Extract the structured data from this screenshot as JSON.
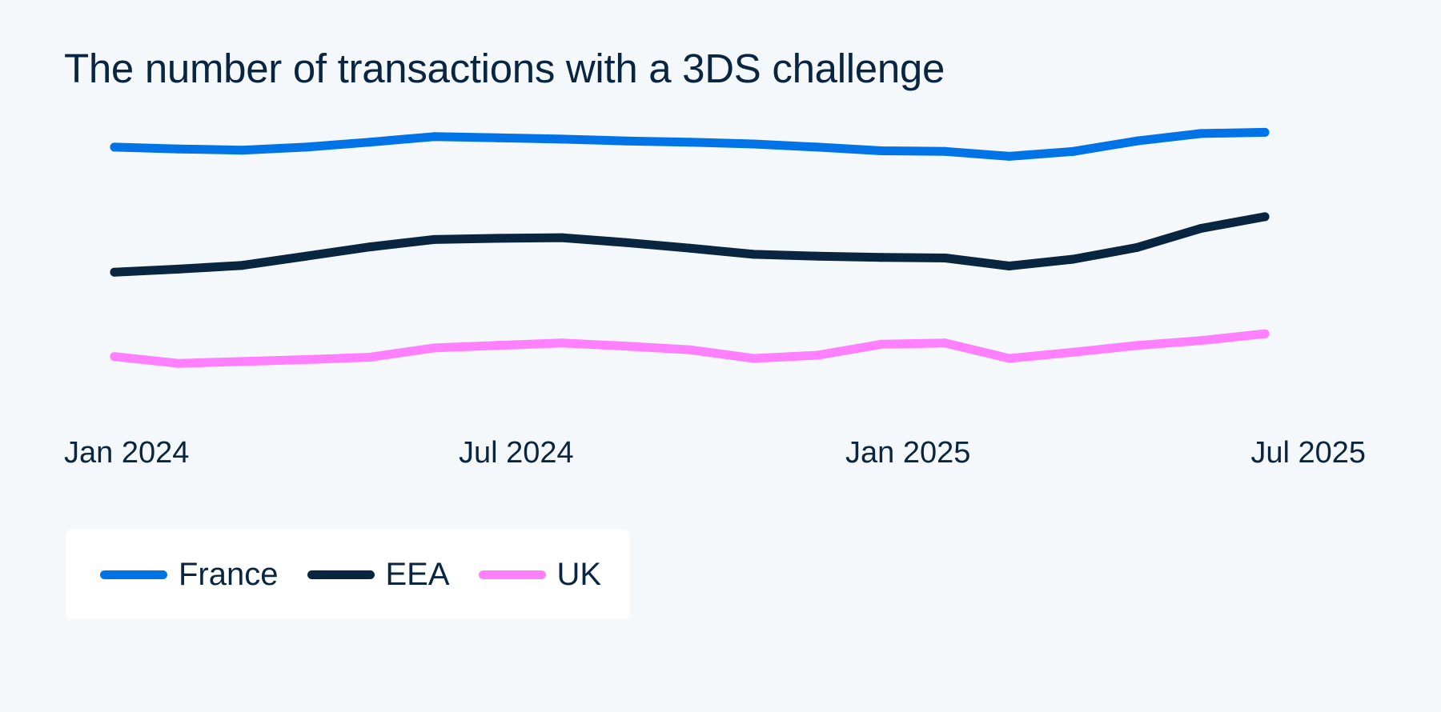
{
  "chart_data": {
    "type": "line",
    "title": "The number of transactions with a 3DS challenge",
    "xlabel": "",
    "ylabel": "",
    "x": [
      "2024-01",
      "2024-02",
      "2024-03",
      "2024-04",
      "2024-05",
      "2024-06",
      "2024-07",
      "2024-08",
      "2024-09",
      "2024-10",
      "2024-11",
      "2024-12",
      "2025-01",
      "2025-02",
      "2025-03",
      "2025-04",
      "2025-05",
      "2025-06",
      "2025-07"
    ],
    "x_ticks": [
      "Jan 2024",
      "Jul 2024",
      "Jan 2025",
      "Jul 2025"
    ],
    "y_axis_visible": false,
    "grid": false,
    "legend_position": "bottom-left",
    "series": [
      {
        "name": "France",
        "color": "#0073e6",
        "values": [
          84.3,
          84.0,
          83.8,
          84.3,
          85.1,
          86.0,
          85.8,
          85.6,
          85.3,
          85.1,
          84.8,
          84.3,
          83.7,
          83.6,
          82.8,
          83.6,
          85.3,
          86.5,
          86.7
        ]
      },
      {
        "name": "EEA",
        "color": "#0a2540",
        "values": [
          64.0,
          64.5,
          65.1,
          66.6,
          68.1,
          69.3,
          69.5,
          69.6,
          68.8,
          67.9,
          66.9,
          66.6,
          66.4,
          66.3,
          65.0,
          66.1,
          68.0,
          71.1,
          73.0
        ]
      },
      {
        "name": "UK",
        "color": "#ff80ff",
        "values": [
          50.3,
          49.2,
          49.5,
          49.8,
          50.2,
          51.7,
          52.1,
          52.5,
          52.0,
          51.4,
          50.0,
          50.5,
          52.3,
          52.5,
          50.0,
          51.0,
          52.1,
          52.9,
          54.0
        ]
      }
    ],
    "ylim": [
      40,
      90
    ]
  }
}
